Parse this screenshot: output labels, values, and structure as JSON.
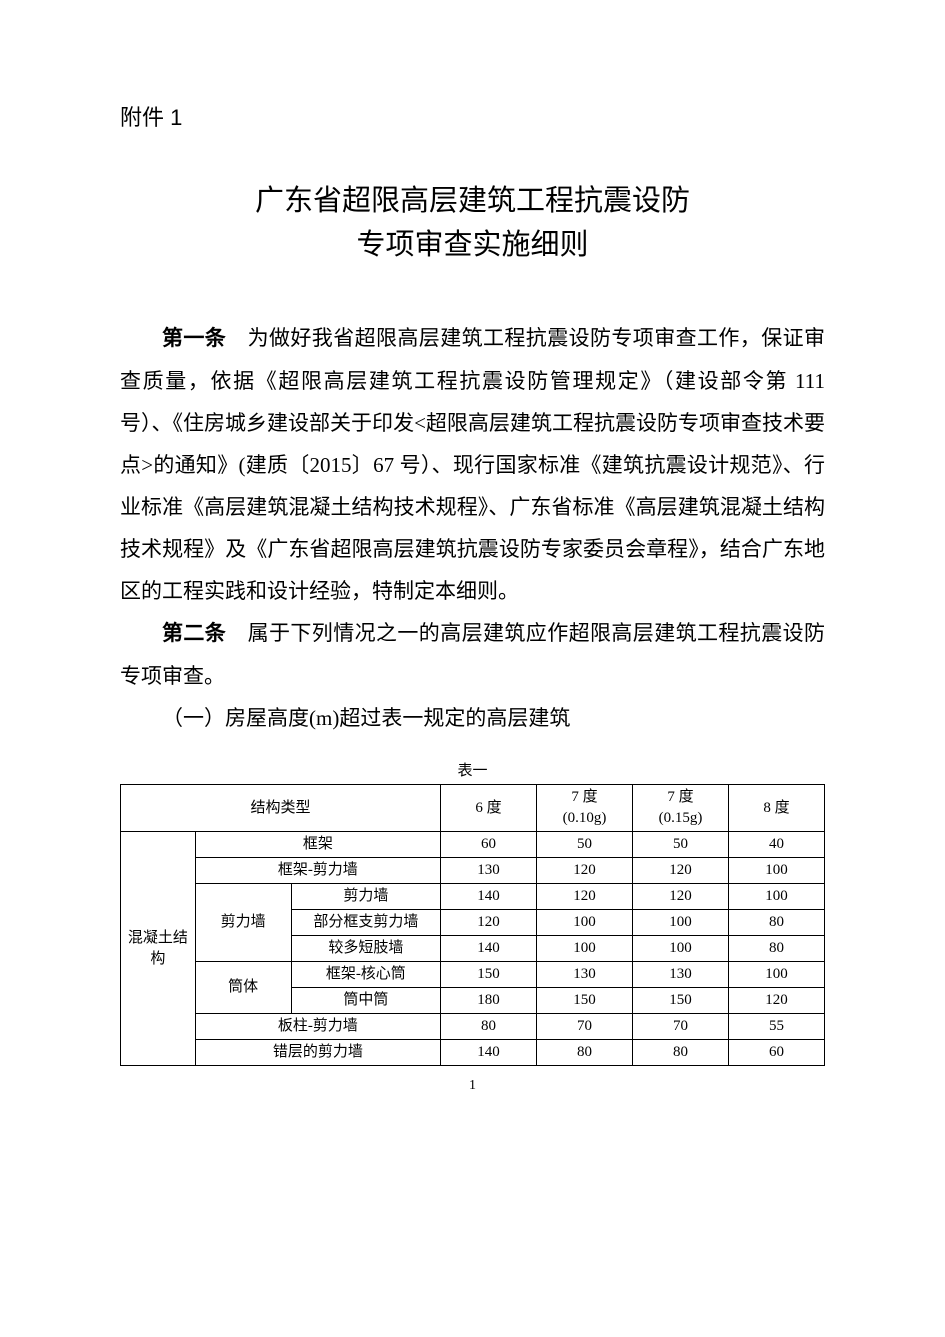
{
  "attachment_label": "附件 1",
  "title_line1": "广东省超限高层建筑工程抗震设防",
  "title_line2": "专项审查实施细则",
  "article1_label": "第一条",
  "article1_text": "　为做好我省超限高层建筑工程抗震设防专项审查工作，保证审查质量，依据《超限高层建筑工程抗震设防管理规定》（建设部令第 111 号）、《住房城乡建设部关于印发<超限高层建筑工程抗震设防专项审查技术要点>的通知》(建质〔2015〕67 号）、现行国家标准《建筑抗震设计规范》、行业标准《高层建筑混凝土结构技术规程》、广东省标准《高层建筑混凝土结构技术规程》及《广东省超限高层建筑抗震设防专家委员会章程》，结合广东地区的工程实践和设计经验，特制定本细则。",
  "article2_label": "第二条",
  "article2_text": "　属于下列情况之一的高层建筑应作超限高层建筑工程抗震设防专项审查。",
  "subitem1": "（一）房屋高度(m)超过表一规定的高层建筑",
  "table_caption": "表一",
  "headers": {
    "col1": "结构类型",
    "col2": "6 度",
    "col3a": "7 度",
    "col3b": "(0.10g)",
    "col4a": "7 度",
    "col4b": "(0.15g)",
    "col5": "8 度"
  },
  "group_label": "混凝土结构",
  "rows": [
    {
      "sub1": "",
      "sub2": "框架",
      "span": 2,
      "v": [
        "60",
        "50",
        "50",
        "40"
      ]
    },
    {
      "sub1": "",
      "sub2": "框架-剪力墙",
      "span": 2,
      "v": [
        "130",
        "120",
        "120",
        "100"
      ]
    },
    {
      "sub1": "剪力墙",
      "sub2": "剪力墙",
      "span": 1,
      "rowspan": 3,
      "v": [
        "140",
        "120",
        "120",
        "100"
      ]
    },
    {
      "sub1": "",
      "sub2": "部分框支剪力墙",
      "span": 1,
      "v": [
        "120",
        "100",
        "100",
        "80"
      ]
    },
    {
      "sub1": "",
      "sub2": "较多短肢墙",
      "span": 1,
      "v": [
        "140",
        "100",
        "100",
        "80"
      ]
    },
    {
      "sub1": "筒体",
      "sub2": "框架-核心筒",
      "span": 1,
      "rowspan": 2,
      "v": [
        "150",
        "130",
        "130",
        "100"
      ]
    },
    {
      "sub1": "",
      "sub2": "筒中筒",
      "span": 1,
      "v": [
        "180",
        "150",
        "150",
        "120"
      ]
    },
    {
      "sub1": "",
      "sub2": "板柱-剪力墙",
      "span": 2,
      "v": [
        "80",
        "70",
        "70",
        "55"
      ]
    },
    {
      "sub1": "",
      "sub2": "错层的剪力墙",
      "span": 2,
      "v": [
        "140",
        "80",
        "80",
        "60"
      ]
    }
  ],
  "page_number": "1"
}
